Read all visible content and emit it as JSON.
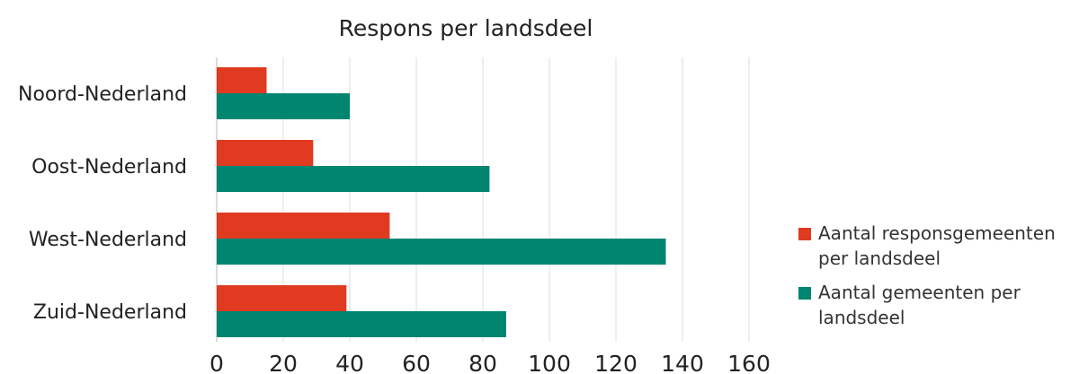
{
  "chart_data": {
    "type": "bar",
    "orientation": "horizontal",
    "title": "Respons per landsdeel",
    "xlabel": "",
    "ylabel": "",
    "categories": [
      "Noord-Nederland",
      "Oost-Nederland",
      "West-Nederland",
      "Zuid-Nederland"
    ],
    "series": [
      {
        "name": "Aantal responsgemeenten per landsdeel",
        "color": "#e03a20",
        "values": [
          15,
          29,
          52,
          39
        ]
      },
      {
        "name": "Aantal gemeenten per landsdeel",
        "color": "#008571",
        "values": [
          40,
          82,
          135,
          87
        ]
      }
    ],
    "xlim": [
      0,
      160
    ],
    "xticks": [
      0,
      20,
      40,
      60,
      80,
      100,
      120,
      140,
      160
    ],
    "grid": "vertical",
    "legend_position": "right"
  }
}
